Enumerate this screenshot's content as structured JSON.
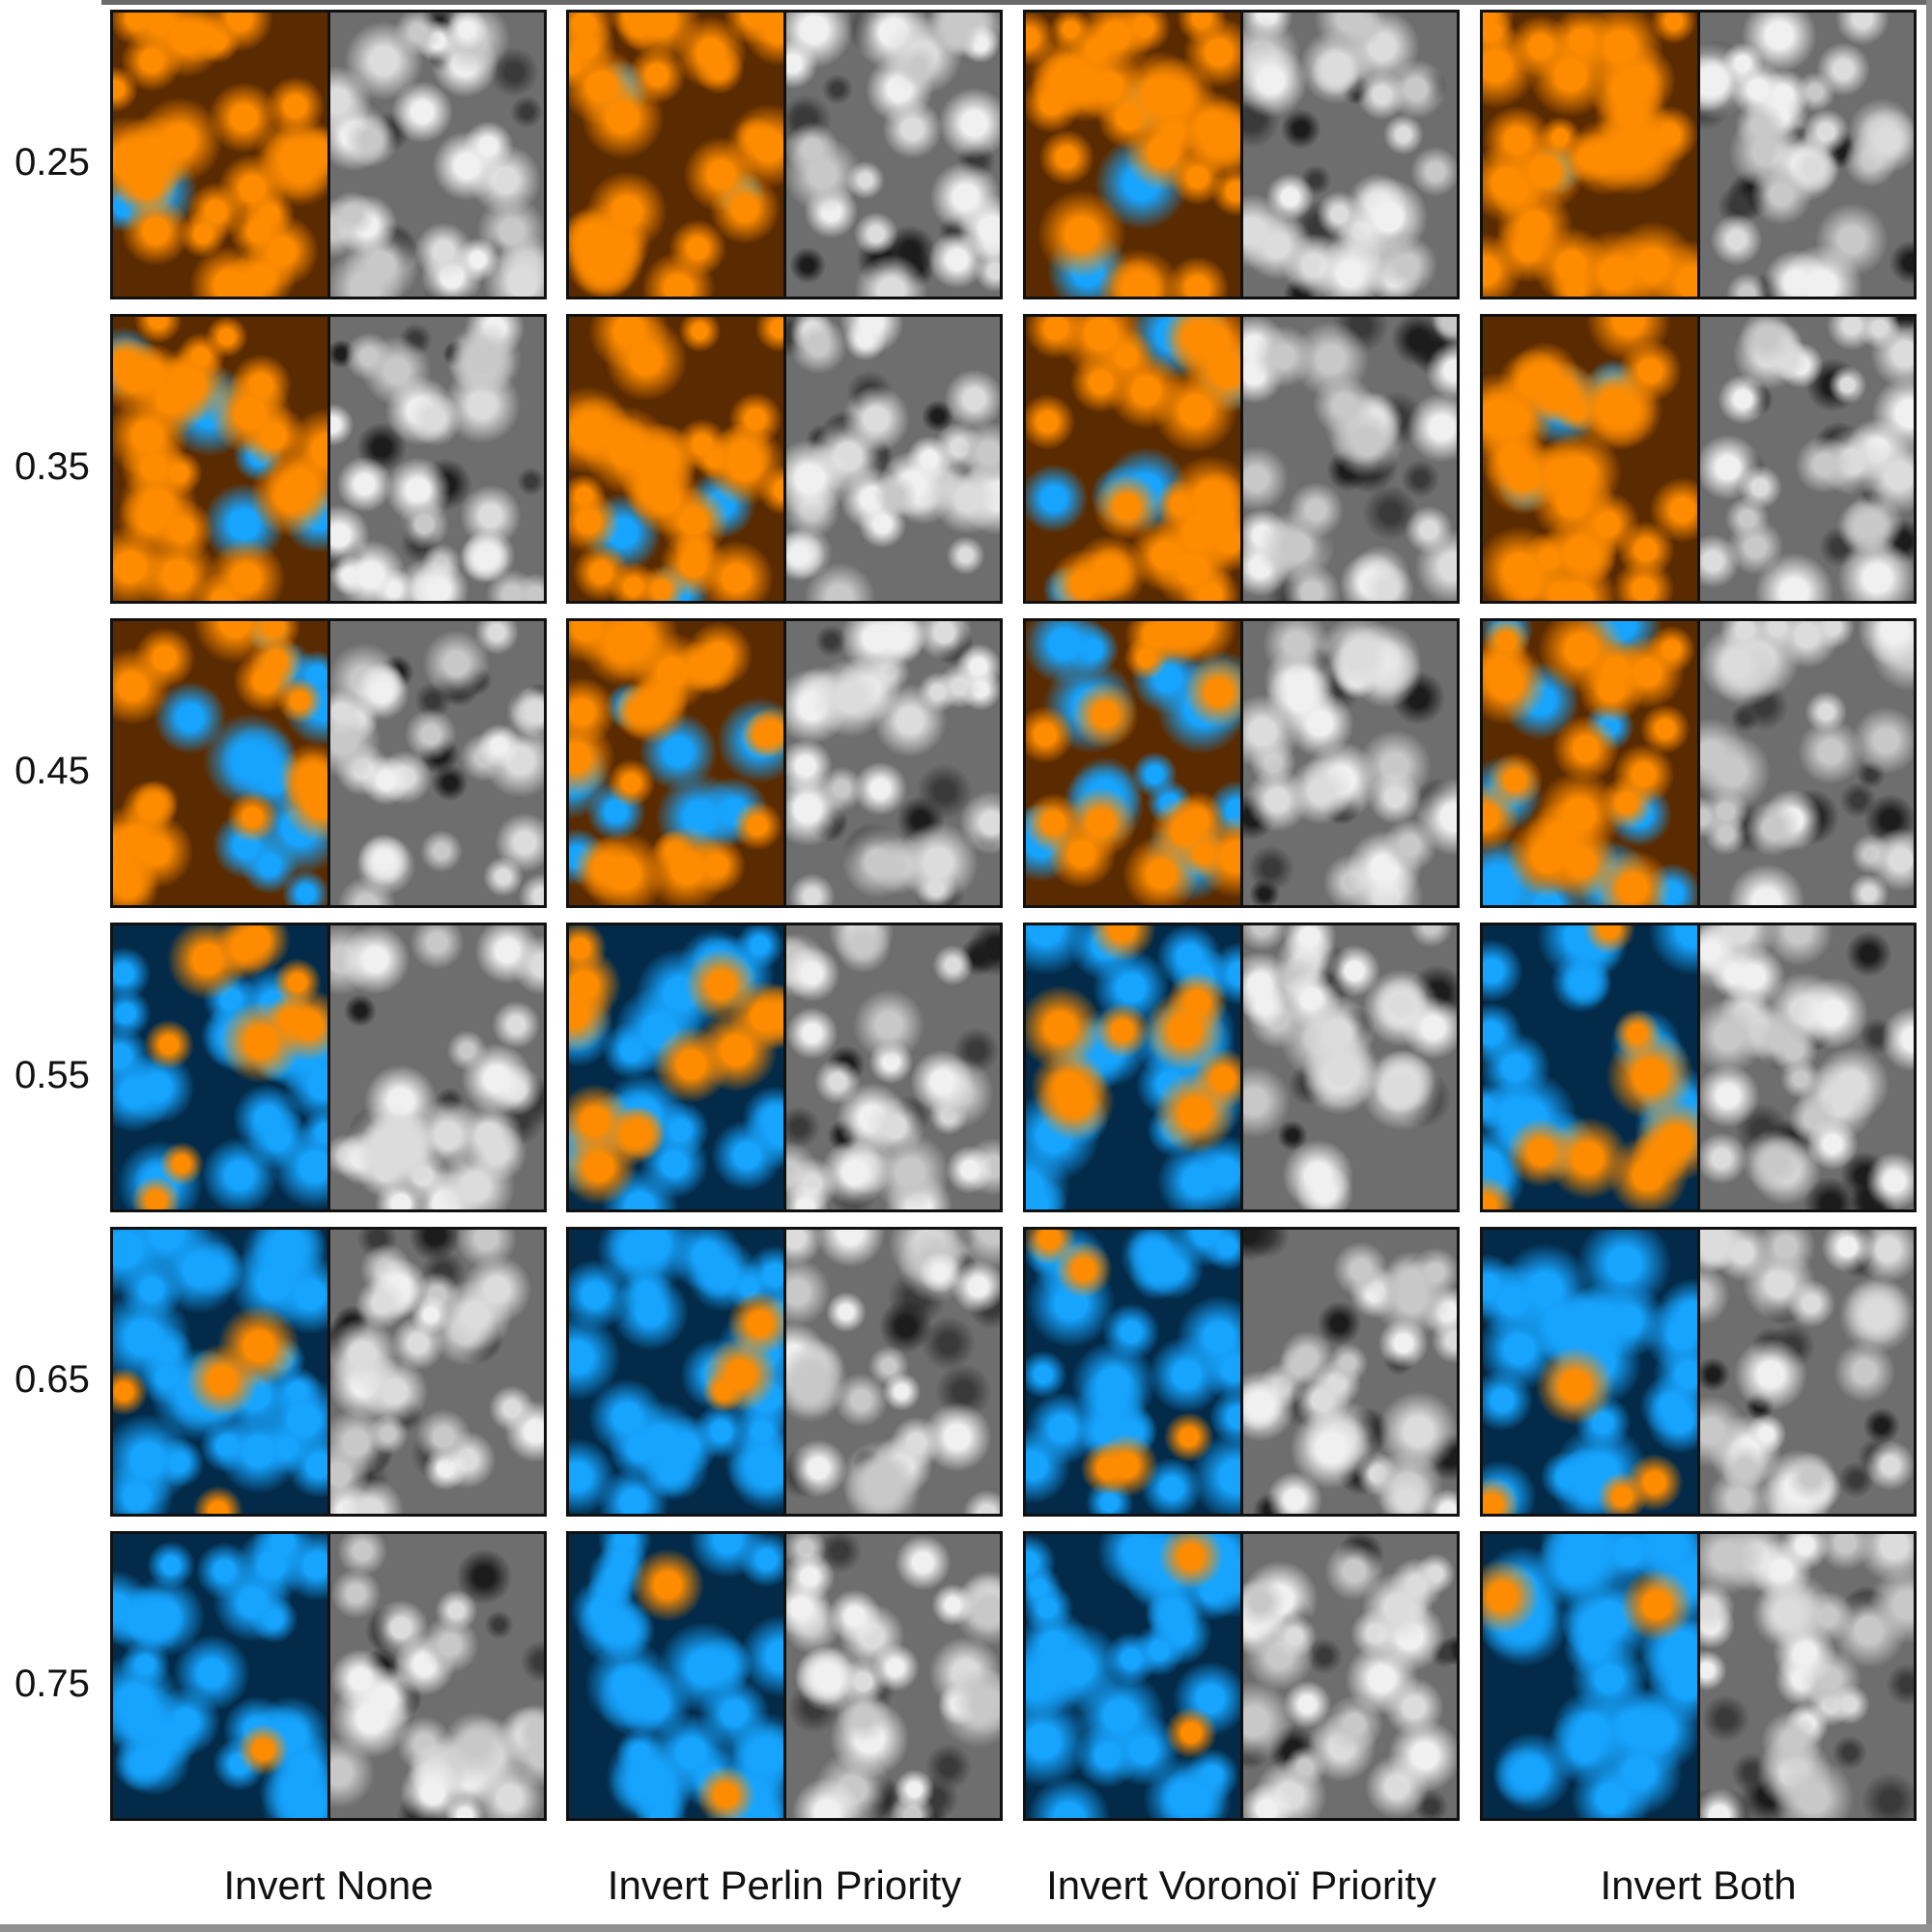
{
  "row_labels": [
    "0.25",
    "0.35",
    "0.45",
    "0.55",
    "0.65",
    "0.75"
  ],
  "column_labels": [
    "Invert  None",
    "Invert Perlin Priority",
    "Invert Voronoï  Priority",
    "Invert Both"
  ],
  "colors": {
    "orange": "#ff8c00",
    "orange_dark": "#5a2a00",
    "blue": "#16a4ff",
    "blue_dark": "#032a48",
    "gray_light": "#f0f0f0",
    "gray_dark": "#1c1c1c",
    "frame": "#111111"
  },
  "orange_fraction": [
    [
      0.97,
      0.97,
      0.94,
      0.99
    ],
    [
      0.85,
      0.93,
      0.78,
      0.92
    ],
    [
      0.62,
      0.72,
      0.55,
      0.63
    ],
    [
      0.32,
      0.38,
      0.3,
      0.28
    ],
    [
      0.1,
      0.06,
      0.15,
      0.12
    ],
    [
      0.01,
      0.02,
      0.05,
      0.04
    ]
  ]
}
